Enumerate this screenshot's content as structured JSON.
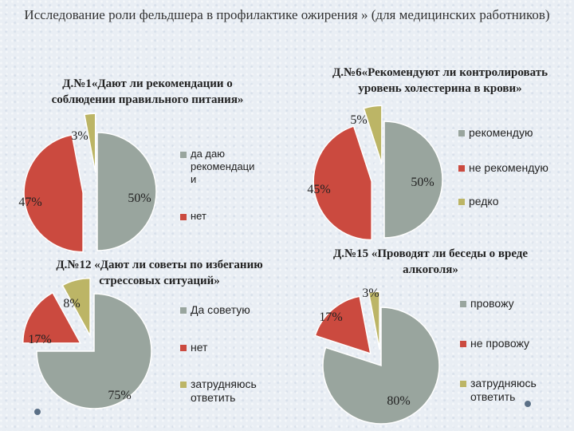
{
  "slide_title": "Исследование роли фельдшера в профилактике ожирения  » (для медицинских работников)",
  "colors": {
    "gray": "#99a59e",
    "red": "#cb4a3f",
    "olive": "#bcb566"
  },
  "chart_data": [
    {
      "type": "pie",
      "title": "Д.№1«Дают ли рекомендации о соблюдении правильного питания»",
      "slices": [
        {
          "label": "да даю рекомендации",
          "value": 50,
          "display": "50%",
          "color": "#99a59e"
        },
        {
          "label": "нет",
          "value": 47,
          "display": "47%",
          "color": "#cb4a3f"
        },
        {
          "label": "",
          "value": 3,
          "display": "3%",
          "color": "#bcb566"
        }
      ],
      "legend": [
        "да даю рекомендаци и",
        "нет"
      ]
    },
    {
      "type": "pie",
      "title": "Д.№6«Рекомендуют ли контролировать уровень холестерина в крови»",
      "slices": [
        {
          "label": "рекомендую",
          "value": 50,
          "display": "50%",
          "color": "#99a59e"
        },
        {
          "label": "не рекомендую",
          "value": 45,
          "display": "45%",
          "color": "#cb4a3f"
        },
        {
          "label": "редко",
          "value": 5,
          "display": "5%",
          "color": "#bcb566"
        }
      ],
      "legend": [
        "рекомендую",
        "не рекомендую",
        "редко"
      ]
    },
    {
      "type": "pie",
      "title": "Д.№12 «Дают ли советы по избеганию стрессовых ситуаций»",
      "slices": [
        {
          "label": "Да советую",
          "value": 75,
          "display": "75%",
          "color": "#99a59e"
        },
        {
          "label": "нет",
          "value": 17,
          "display": "17%",
          "color": "#cb4a3f"
        },
        {
          "label": "затрудняюсь ответить",
          "value": 8,
          "display": "8%",
          "color": "#bcb566"
        }
      ],
      "legend": [
        "Да советую",
        "нет",
        "затрудняюсь ответить"
      ]
    },
    {
      "type": "pie",
      "title": "Д.№15 «Проводят ли беседы о вреде алкоголя»",
      "slices": [
        {
          "label": "провожу",
          "value": 80,
          "display": "80%",
          "color": "#99a59e"
        },
        {
          "label": "не провожу",
          "value": 17,
          "display": "17%",
          "color": "#cb4a3f"
        },
        {
          "label": "затрудняюсь ответить",
          "value": 3,
          "display": "3%",
          "color": "#bcb566"
        }
      ],
      "legend": [
        "провожу",
        "не провожу",
        "затрудняюсь ответить"
      ]
    }
  ]
}
